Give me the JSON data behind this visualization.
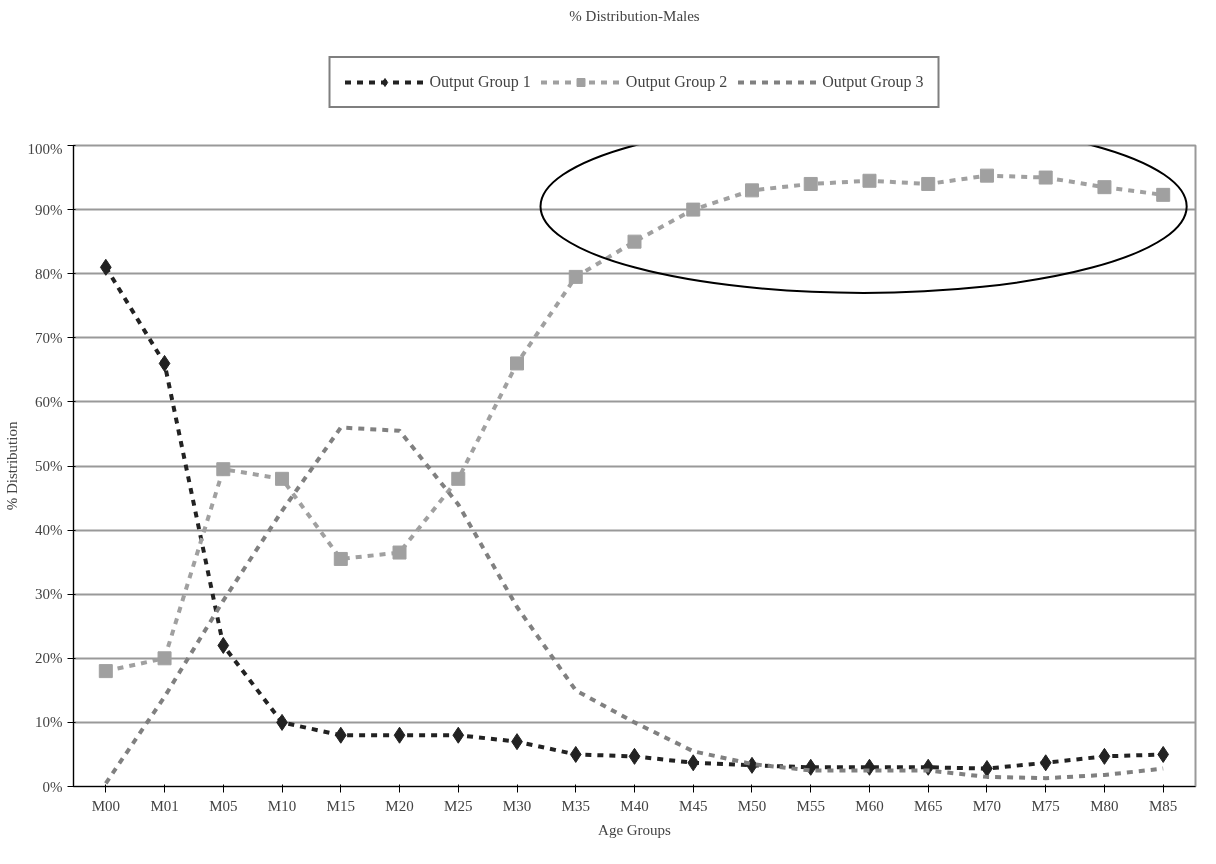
{
  "chart_data": {
    "type": "line",
    "title": "% Distribution-Males",
    "xlabel": "Age Groups",
    "ylabel": "% Distribution",
    "categories": [
      "M00",
      "M01",
      "M05",
      "M10",
      "M15",
      "M20",
      "M25",
      "M30",
      "M35",
      "M40",
      "M45",
      "M50",
      "M55",
      "M60",
      "M65",
      "M70",
      "M75",
      "M80",
      "M85"
    ],
    "series": [
      {
        "name": "Output Group 1",
        "color": "#222222",
        "marker": "diamond",
        "values": [
          81,
          66,
          22,
          10,
          8,
          8,
          8,
          7,
          5,
          4.7,
          3.7,
          3.3,
          3,
          3,
          3,
          2.8,
          3.7,
          4.7,
          5
        ]
      },
      {
        "name": "Output Group 2",
        "color": "#a0a0a0",
        "marker": "square",
        "values": [
          18,
          20,
          49.5,
          48,
          35.5,
          36.5,
          48,
          66,
          79.5,
          85,
          90,
          93,
          94,
          94.5,
          94,
          95.3,
          95,
          93.5,
          92.3
        ]
      },
      {
        "name": "Output Group 3",
        "color": "#808080",
        "marker": "none",
        "values": [
          0.5,
          14,
          29,
          43,
          56,
          55.5,
          44,
          28,
          15,
          10,
          5.5,
          3.5,
          2.5,
          2.5,
          2.5,
          1.5,
          1.3,
          1.8,
          2.8
        ]
      }
    ],
    "line_style": "dashed",
    "grid": "y",
    "legend": "top",
    "ylim": [
      0,
      100
    ],
    "yticks": [
      {
        "value": 0,
        "label": "0%"
      },
      {
        "value": 10,
        "label": "10%"
      },
      {
        "value": 20,
        "label": "20%"
      },
      {
        "value": 30,
        "label": "30%"
      },
      {
        "value": 40,
        "label": "40%"
      },
      {
        "value": 50,
        "label": "50%"
      },
      {
        "value": 60,
        "label": "60%"
      },
      {
        "value": 70,
        "label": "70%"
      },
      {
        "value": 80,
        "label": "80%"
      },
      {
        "value": 90,
        "label": "90%"
      },
      {
        "value": 100,
        "label": "100%"
      }
    ]
  }
}
